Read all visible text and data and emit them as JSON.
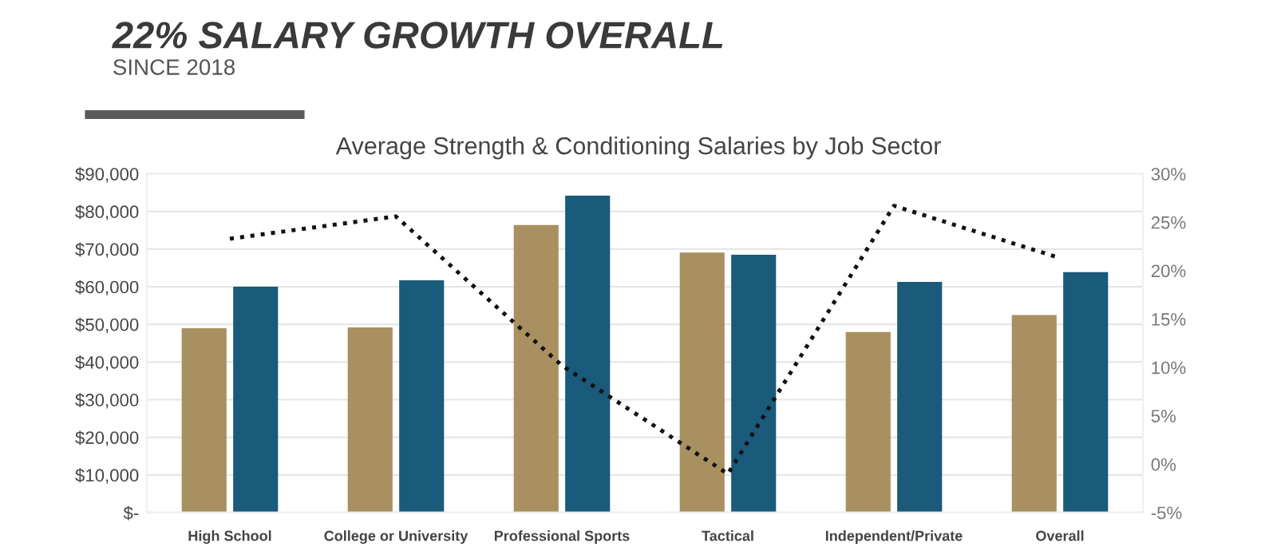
{
  "chart_data": {
    "type": "bar",
    "title": "22% SALARY GROWTH OVERALL",
    "subtitle": "SINCE 2018",
    "xlabel": "Average Strength & Conditioning Salaries by Job Sector",
    "categories": [
      "High School",
      "College or University",
      "Professional Sports",
      "Tactical",
      "Independent/Private",
      "Overall"
    ],
    "series": [
      {
        "color": "#a89060",
        "values": [
          49000,
          49200,
          76400,
          69100,
          48000,
          52500
        ]
      },
      {
        "color": "#1a5a7a",
        "values": [
          60000,
          61700,
          84200,
          68500,
          61300,
          63900
        ]
      },
      {
        "type": "line",
        "axis": "y2",
        "color": "#111111",
        "line_style": "dotted",
        "values": [
          23.3,
          25.6,
          10.2,
          -1,
          26.7,
          21.3
        ]
      }
    ],
    "ylim": [
      0,
      90000
    ],
    "yticks": [
      {
        "value": 0,
        "label": "$-"
      },
      {
        "value": 10000,
        "label": "$10,000"
      },
      {
        "value": 20000,
        "label": "$20,000"
      },
      {
        "value": 30000,
        "label": "$30,000"
      },
      {
        "value": 40000,
        "label": "$40,000"
      },
      {
        "value": 50000,
        "label": "$50,000"
      },
      {
        "value": 60000,
        "label": "$60,000"
      },
      {
        "value": 70000,
        "label": "$70,000"
      },
      {
        "value": 80000,
        "label": "$80,000"
      },
      {
        "value": 90000,
        "label": "$90,000"
      }
    ],
    "y2lim": [
      -5,
      30
    ],
    "y2ticks": [
      {
        "value": -5,
        "label": "-5%"
      },
      {
        "value": 0,
        "label": "0%"
      },
      {
        "value": 5,
        "label": "5%"
      },
      {
        "value": 10,
        "label": "10%"
      },
      {
        "value": 15,
        "label": "15%"
      },
      {
        "value": 20,
        "label": "20%"
      },
      {
        "value": 25,
        "label": "25%"
      },
      {
        "value": 30,
        "label": "30%"
      }
    ],
    "grid": "y",
    "legend": false
  }
}
